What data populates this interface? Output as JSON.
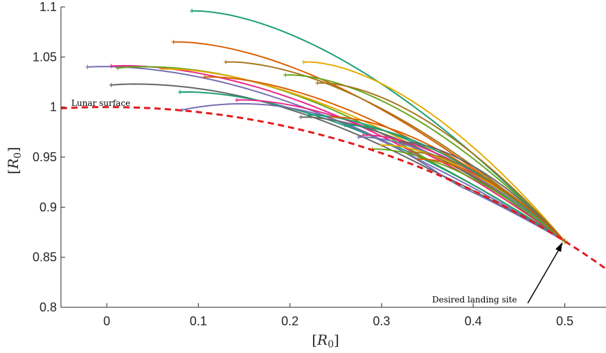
{
  "chart_data": {
    "type": "line",
    "title": "",
    "xlabel": "[R_0]",
    "ylabel": "[R_0]",
    "xlim": [
      -0.05,
      0.545
    ],
    "ylim": [
      0.8,
      1.1
    ],
    "xticks": [
      "0",
      "0.1",
      "0.2",
      "0.3",
      "0.4",
      "0.5"
    ],
    "yticks": [
      "0.8",
      "0.85",
      "0.9",
      "0.95",
      "1",
      "1.05",
      "1.1"
    ],
    "grid": false,
    "annotations": {
      "lunar_surface": "Lunar surface",
      "landing_site": "Desired landing site"
    },
    "lunar_surface": {
      "color": "#e41a1c",
      "style": "dashed",
      "radius": 1.0
    },
    "landing_site": {
      "x": 0.5,
      "y": 0.866
    },
    "series_colors": [
      "#1b9e77",
      "#d95f02",
      "#7570b3",
      "#e7298a",
      "#66a61e",
      "#e6ab02",
      "#a6761d",
      "#666666"
    ],
    "trajectories": [
      {
        "x0": 0.093,
        "y0": 1.096,
        "peak": 0.0
      },
      {
        "x0": 0.073,
        "y0": 1.065,
        "peak": 0.0
      },
      {
        "x0": -0.021,
        "y0": 1.04,
        "peak": 0.004
      },
      {
        "x0": 0.005,
        "y0": 1.041,
        "peak": 0.003
      },
      {
        "x0": 0.012,
        "y0": 1.039,
        "peak": 0.008
      },
      {
        "x0": 0.06,
        "y0": 1.038,
        "peak": 0.0
      },
      {
        "x0": 0.13,
        "y0": 1.045,
        "peak": 0.0
      },
      {
        "x0": 0.005,
        "y0": 1.022,
        "peak": 0.006
      },
      {
        "x0": 0.08,
        "y0": 1.015,
        "peak": 0.0
      },
      {
        "x0": 0.107,
        "y0": 1.03,
        "peak": 0.0
      },
      {
        "x0": 0.082,
        "y0": 0.997,
        "peak": 0.018
      },
      {
        "x0": 0.142,
        "y0": 1.007,
        "peak": 0.0
      },
      {
        "x0": 0.195,
        "y0": 1.032,
        "peak": 0.0
      },
      {
        "x0": 0.215,
        "y0": 1.045,
        "peak": 0.0
      },
      {
        "x0": 0.23,
        "y0": 1.024,
        "peak": 0.0
      },
      {
        "x0": 0.212,
        "y0": 0.99,
        "peak": 0.0
      },
      {
        "x0": 0.22,
        "y0": 0.992,
        "peak": 0.0
      },
      {
        "x0": 0.245,
        "y0": 0.99,
        "peak": 0.0
      },
      {
        "x0": 0.275,
        "y0": 0.97,
        "peak": 0.0
      },
      {
        "x0": 0.28,
        "y0": 0.972,
        "peak": 0.0
      },
      {
        "x0": 0.29,
        "y0": 0.958,
        "peak": 0.0
      },
      {
        "x0": 0.3,
        "y0": 0.962,
        "peak": 0.0
      },
      {
        "x0": 0.33,
        "y0": 0.955,
        "peak": 0.0
      },
      {
        "x0": 0.32,
        "y0": 0.965,
        "peak": 0.0
      },
      {
        "x0": 0.26,
        "y0": 0.982,
        "peak": 0.0
      },
      {
        "x0": 0.34,
        "y0": 0.948,
        "peak": 0.0
      }
    ]
  }
}
